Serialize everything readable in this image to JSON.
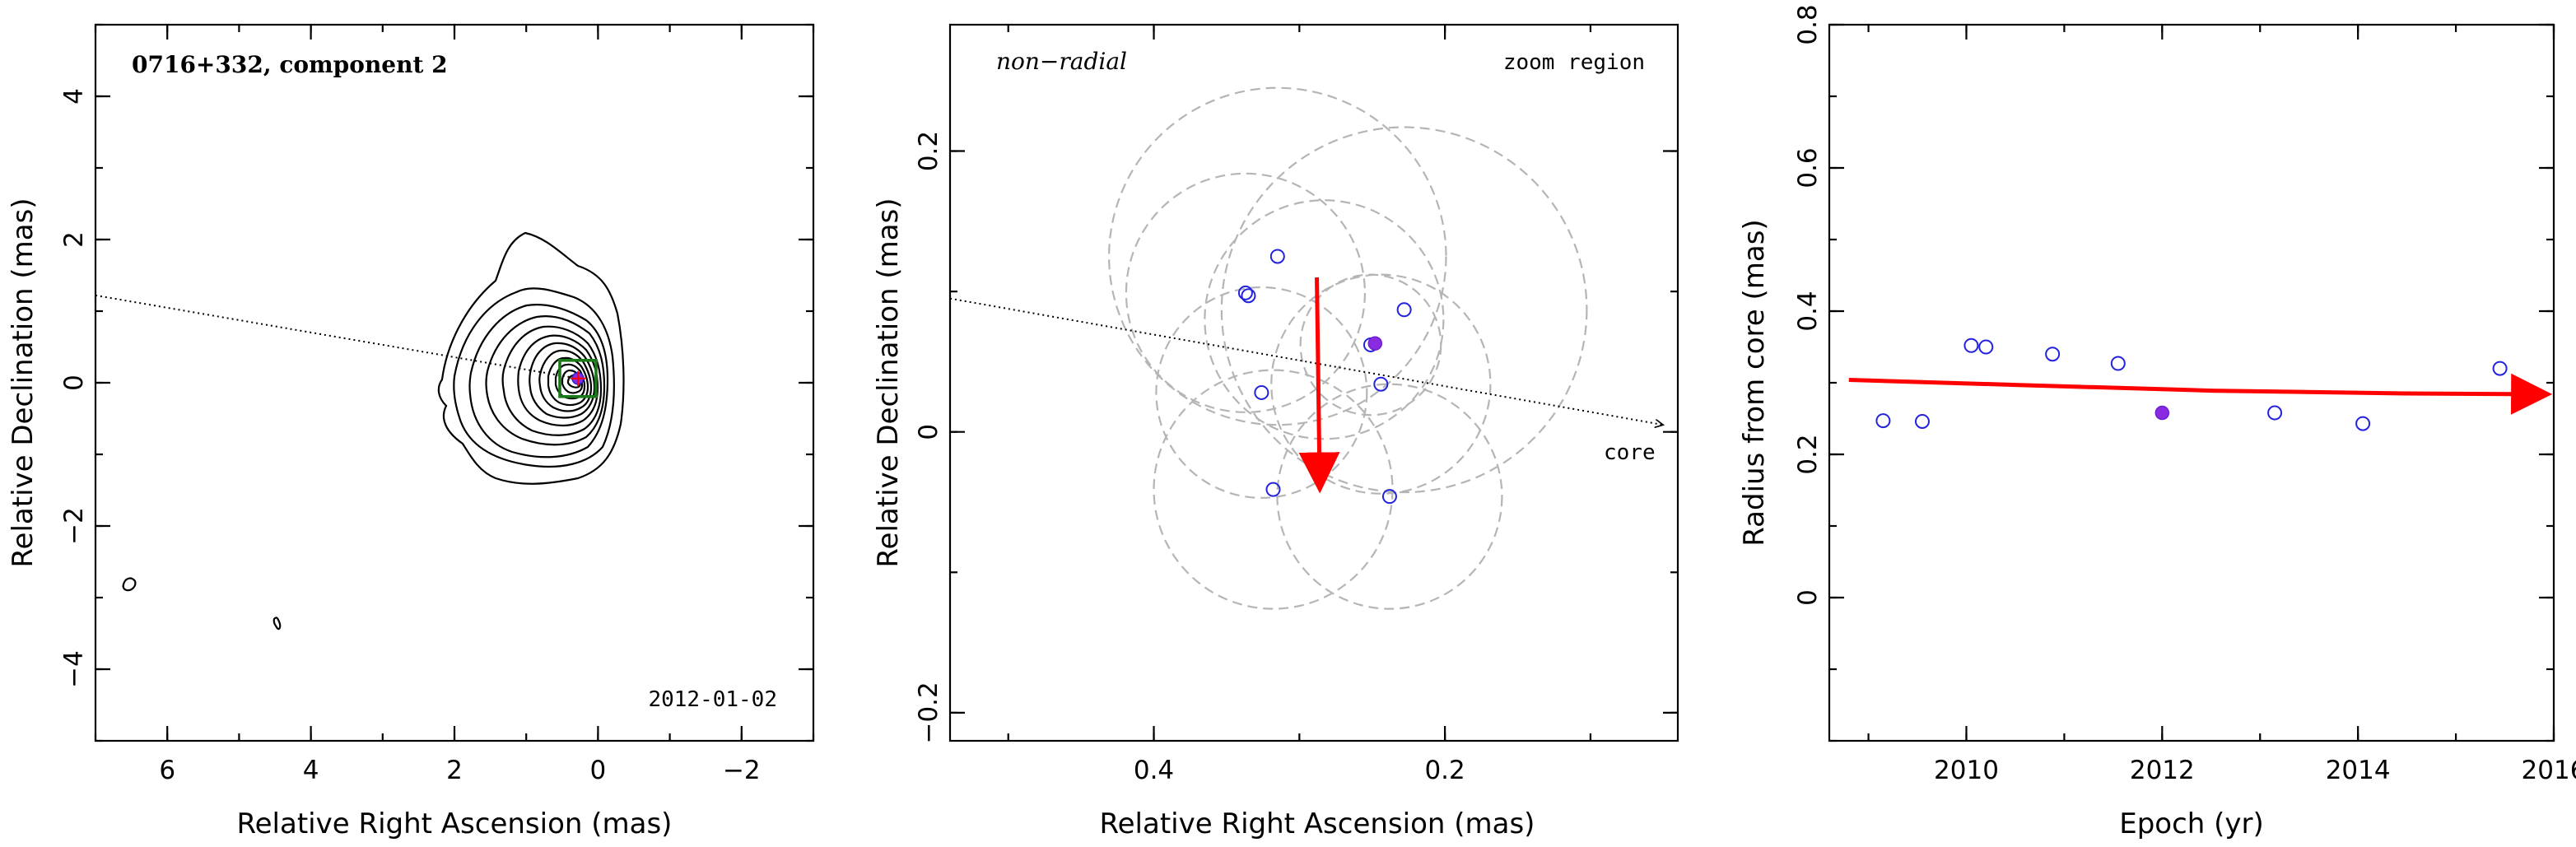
{
  "colors": {
    "point_open": "#2323dd",
    "point_selected": "#8a2be2",
    "arrow": "#ff0000",
    "fit_box": "#1a7a1a",
    "uncertainty_circles": "#b5b5b5"
  },
  "chart_data": [
    {
      "type": "contour",
      "title": "0716+332, component 2",
      "annotation": "2012-01-02",
      "xlabel": "Relative Right Ascension (mas)",
      "ylabel": "Relative Declination (mas)",
      "xlim": [
        7,
        -3
      ],
      "ylim": [
        -5,
        5
      ],
      "xticks": [
        "6",
        "4",
        "2",
        "0",
        "−2"
      ],
      "yticks": [
        "−4",
        "−2",
        "0",
        "2",
        "4"
      ],
      "component": {
        "x": 0.28,
        "y": 0.06
      },
      "core_direction_line": [
        [
          7,
          1.22
        ],
        [
          0.28,
          0.06
        ]
      ]
    },
    {
      "type": "scatter",
      "label_left": "non−radial",
      "label_right": "zoom region",
      "core_label": "core",
      "xlabel": "Relative Right Ascension (mas)",
      "ylabel": "Relative Declination (mas)",
      "xlim": [
        0.54,
        0.04
      ],
      "ylim": [
        -0.22,
        0.29
      ],
      "xticks": [
        "0.4",
        "0.2"
      ],
      "yticks": [
        "−0.2",
        "0",
        "0.2"
      ],
      "points": [
        {
          "x": 0.315,
          "y": 0.125
        },
        {
          "x": 0.337,
          "y": 0.099
        },
        {
          "x": 0.335,
          "y": 0.097
        },
        {
          "x": 0.228,
          "y": 0.087
        },
        {
          "x": 0.251,
          "y": 0.062
        },
        {
          "x": 0.244,
          "y": 0.034
        },
        {
          "x": 0.326,
          "y": 0.028
        },
        {
          "x": 0.318,
          "y": -0.041
        },
        {
          "x": 0.238,
          "y": -0.046
        }
      ],
      "selected_point": {
        "x": 0.248,
        "y": 0.063
      },
      "uncertainty_circles": [
        {
          "x": 0.315,
          "y": 0.125,
          "r": 0.12
        },
        {
          "x": 0.337,
          "y": 0.099,
          "r": 0.085
        },
        {
          "x": 0.228,
          "y": 0.087,
          "r": 0.13
        },
        {
          "x": 0.251,
          "y": 0.062,
          "r": 0.05
        },
        {
          "x": 0.244,
          "y": 0.034,
          "r": 0.078
        },
        {
          "x": 0.326,
          "y": 0.028,
          "r": 0.075
        },
        {
          "x": 0.318,
          "y": -0.041,
          "r": 0.085
        },
        {
          "x": 0.238,
          "y": -0.046,
          "r": 0.08
        },
        {
          "x": 0.283,
          "y": 0.08,
          "r": 0.085
        }
      ],
      "arrow": {
        "from": [
          0.288,
          0.11
        ],
        "to": [
          0.286,
          -0.038
        ]
      },
      "core_direction_line": [
        [
          0.54,
          0.095
        ],
        [
          0.05,
          0.005
        ]
      ]
    },
    {
      "type": "scatter",
      "xlabel": "Epoch (yr)",
      "ylabel": "Radius from core (mas)",
      "xlim": [
        2008.6,
        2016.0
      ],
      "ylim": [
        -0.2,
        0.8
      ],
      "xticks": [
        "2010",
        "2012",
        "2014",
        "2016"
      ],
      "yticks": [
        "0",
        "0.2",
        "0.4",
        "0.6",
        "0.8"
      ],
      "points": [
        {
          "x": 2009.15,
          "y": 0.247
        },
        {
          "x": 2009.55,
          "y": 0.246
        },
        {
          "x": 2010.05,
          "y": 0.352
        },
        {
          "x": 2010.2,
          "y": 0.35
        },
        {
          "x": 2010.88,
          "y": 0.34
        },
        {
          "x": 2011.55,
          "y": 0.327
        },
        {
          "x": 2013.15,
          "y": 0.258
        },
        {
          "x": 2014.05,
          "y": 0.243
        },
        {
          "x": 2015.45,
          "y": 0.32
        }
      ],
      "selected_point": {
        "x": 2012.0,
        "y": 0.258
      },
      "fit_arrow": {
        "x": [
          2008.8,
          2010.5,
          2012.5,
          2014.5,
          2015.9
        ],
        "y": [
          0.304,
          0.297,
          0.289,
          0.285,
          0.284
        ]
      }
    }
  ]
}
